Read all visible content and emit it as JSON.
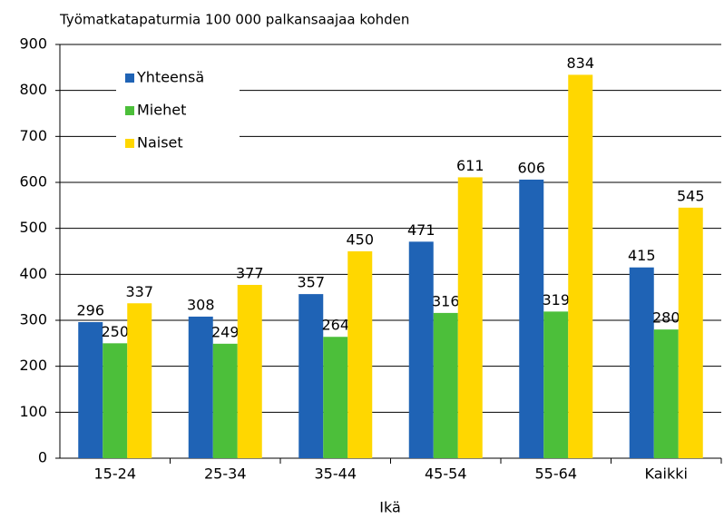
{
  "chart_data": {
    "type": "bar",
    "title": "Työmatkatapaturmia 100 000 palkansaajaa kohden",
    "x_label": "Ikä",
    "categories": [
      "15-24",
      "25-34",
      "35-44",
      "45-54",
      "55-64",
      "Kaikki"
    ],
    "series": [
      {
        "name": "Yhteensä",
        "color": "#1f63b5",
        "values": [
          296,
          308,
          357,
          471,
          606,
          415
        ]
      },
      {
        "name": "Miehet",
        "color": "#4cbf3a",
        "values": [
          250,
          249,
          264,
          316,
          319,
          280
        ]
      },
      {
        "name": "Naiset",
        "color": "#ffd700",
        "values": [
          337,
          377,
          450,
          611,
          834,
          545
        ]
      }
    ],
    "ylim": [
      0,
      900
    ],
    "yticks": [
      0,
      100,
      200,
      300,
      400,
      500,
      600,
      700,
      800,
      900
    ],
    "grid": true,
    "legend": "top-left"
  }
}
